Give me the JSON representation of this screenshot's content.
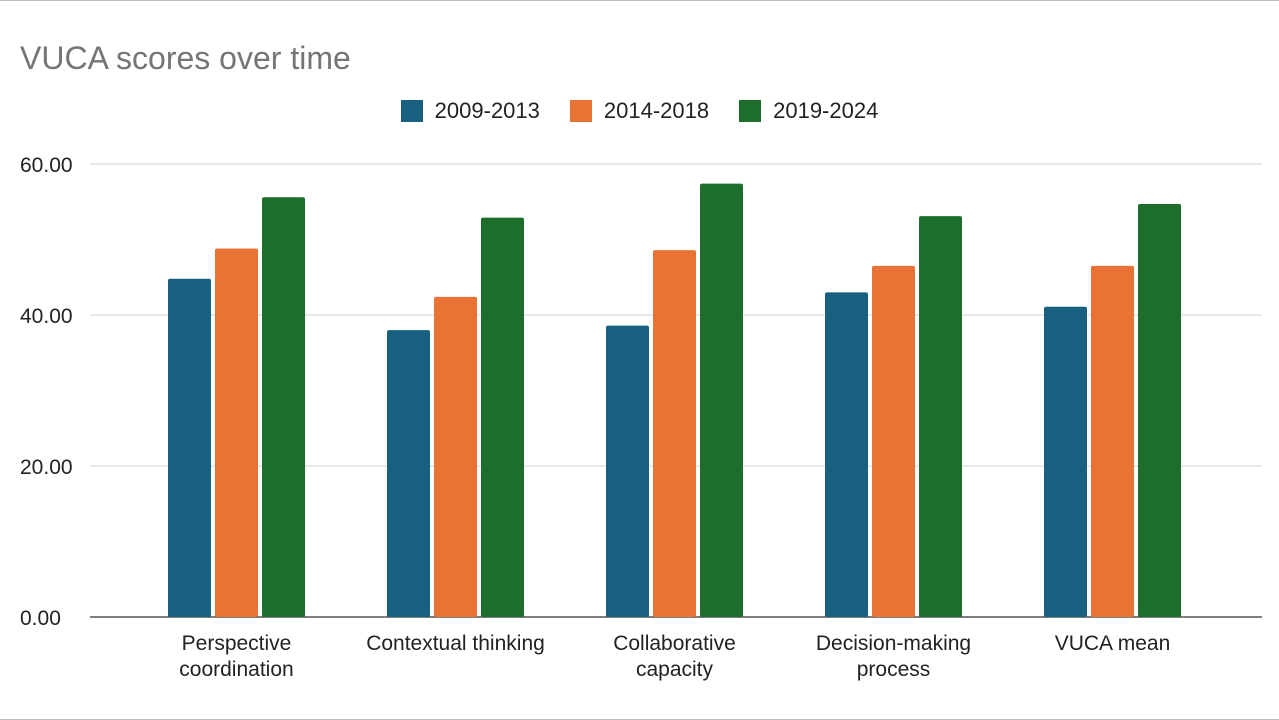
{
  "chart_data": {
    "type": "bar",
    "title": "VUCA scores over time",
    "categories": [
      [
        "Perspective",
        "coordination"
      ],
      [
        "Contextual thinking"
      ],
      [
        "Collaborative",
        "capacity"
      ],
      [
        "Decision-making",
        "process"
      ],
      [
        "VUCA mean"
      ]
    ],
    "series": [
      {
        "name": "2009-2013",
        "color": "#17607f",
        "values": [
          44.8,
          38.0,
          38.6,
          43.0,
          41.1
        ]
      },
      {
        "name": "2014-2018",
        "color": "#e87335",
        "values": [
          48.8,
          42.4,
          48.6,
          46.5,
          46.5
        ]
      },
      {
        "name": "2019-2024",
        "color": "#1d6e2a",
        "values": [
          55.6,
          52.9,
          57.4,
          53.1,
          54.7
        ]
      }
    ],
    "yticks": [
      "0.00",
      "20.00",
      "40.00",
      "60.00"
    ],
    "ylim": [
      0,
      60
    ],
    "grid": true,
    "legend_position": "top-center"
  }
}
